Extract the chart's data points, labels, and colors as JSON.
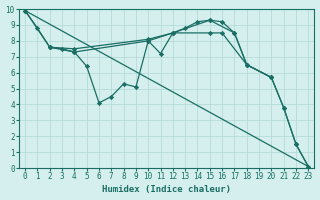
{
  "xlabel": "Humidex (Indice chaleur)",
  "bg_color": "#d4efed",
  "grid_color": "#afd8d4",
  "line_color": "#1a6e64",
  "xlim": [
    -0.5,
    23.5
  ],
  "ylim": [
    0,
    10
  ],
  "xticks": [
    0,
    1,
    2,
    3,
    4,
    5,
    6,
    7,
    8,
    9,
    10,
    11,
    12,
    13,
    14,
    15,
    16,
    17,
    18,
    19,
    20,
    21,
    22,
    23
  ],
  "yticks": [
    0,
    1,
    2,
    3,
    4,
    5,
    6,
    7,
    8,
    9,
    10
  ],
  "line_diagonal": {
    "x": [
      0,
      23
    ],
    "y": [
      9.9,
      0.1
    ]
  },
  "line_flat": {
    "x": [
      2,
      4,
      10,
      12,
      15,
      16,
      18,
      20
    ],
    "y": [
      7.6,
      7.5,
      8.1,
      8.5,
      8.5,
      8.5,
      6.5,
      5.7
    ]
  },
  "line_zigzag": {
    "x": [
      0,
      1,
      2,
      3,
      4,
      5,
      6,
      7,
      8,
      9,
      10,
      11,
      12,
      13,
      14,
      15,
      16,
      17,
      18,
      20,
      21,
      22,
      23
    ],
    "y": [
      9.9,
      8.8,
      7.6,
      7.5,
      7.3,
      6.4,
      4.1,
      4.5,
      5.3,
      5.1,
      8.0,
      7.2,
      8.5,
      8.8,
      9.2,
      9.3,
      9.2,
      8.5,
      6.5,
      5.7,
      3.8,
      1.5,
      0.1
    ]
  },
  "line_medium": {
    "x": [
      0,
      2,
      4,
      10,
      12,
      15,
      17,
      18,
      20,
      21,
      22,
      23
    ],
    "y": [
      9.9,
      7.6,
      7.3,
      8.0,
      8.5,
      9.3,
      8.5,
      6.5,
      5.7,
      3.8,
      1.5,
      0.1
    ]
  }
}
